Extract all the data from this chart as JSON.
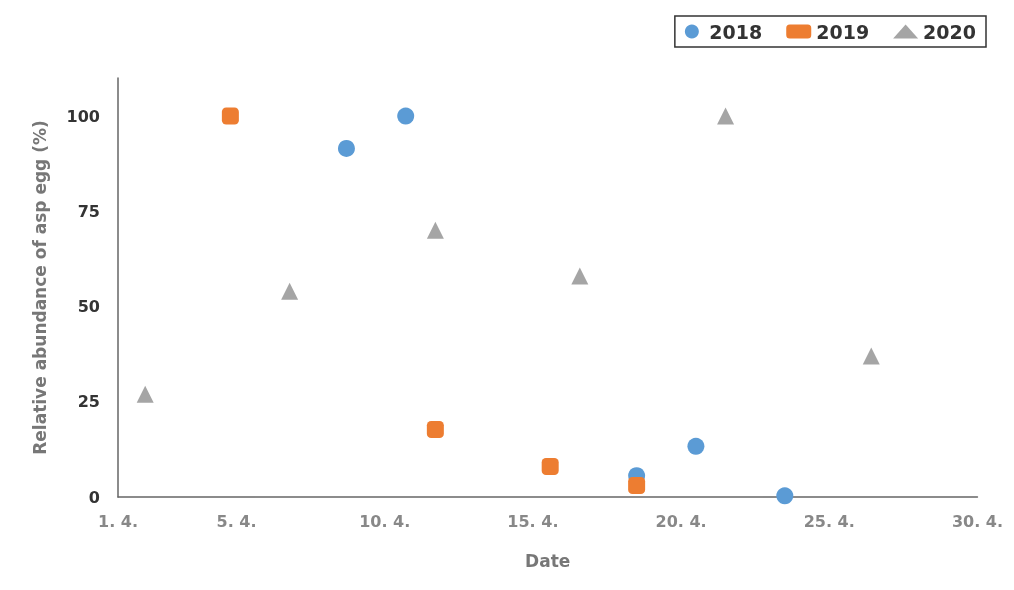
{
  "chart_data": {
    "type": "scatter",
    "xlabel": "Date",
    "ylabel": "Relative abundance of asp egg (%)",
    "xlim": [
      "--04-01",
      "--04-30"
    ],
    "xticks": [
      {
        "value": "--04-01",
        "label": "1. 4."
      },
      {
        "value": "--04-05",
        "label": "5. 4."
      },
      {
        "value": "--04-10",
        "label": "10. 4."
      },
      {
        "value": "--04-15",
        "label": "15. 4."
      },
      {
        "value": "--04-20",
        "label": "20. 4."
      },
      {
        "value": "--04-25",
        "label": "25. 4."
      },
      {
        "value": "--04-30",
        "label": "30. 4."
      }
    ],
    "ylim": [
      0,
      110
    ],
    "yticks": [
      0,
      25,
      50,
      75,
      100
    ],
    "grid": false,
    "legend": "top right",
    "series": [
      {
        "name": "2018",
        "color": "#5b9bd5",
        "marker": "circle",
        "x": [
          "--04-08T17:00",
          "--04-10T17:00",
          "--04-18T12:00",
          "--04-20T12:00",
          "--04-23T12:00"
        ],
        "values": [
          91.5,
          100,
          5.6,
          13.3,
          0.3
        ]
      },
      {
        "name": "2019",
        "color": "#ed7d31",
        "marker": "square",
        "x": [
          "--04-04T19:00",
          "--04-11T17:00",
          "--04-15T14:00",
          "--04-18T12:00"
        ],
        "values": [
          100,
          17.7,
          8,
          3
        ]
      },
      {
        "name": "2020",
        "color": "#a5a5a5",
        "marker": "triangle",
        "x": [
          "--04-01T22:00",
          "--04-06T19:00",
          "--04-11T17:00",
          "--04-16T14:00",
          "--04-21T12:00",
          "--04-26T10:00"
        ],
        "values": [
          27,
          54,
          70,
          58,
          100,
          37
        ]
      }
    ]
  }
}
